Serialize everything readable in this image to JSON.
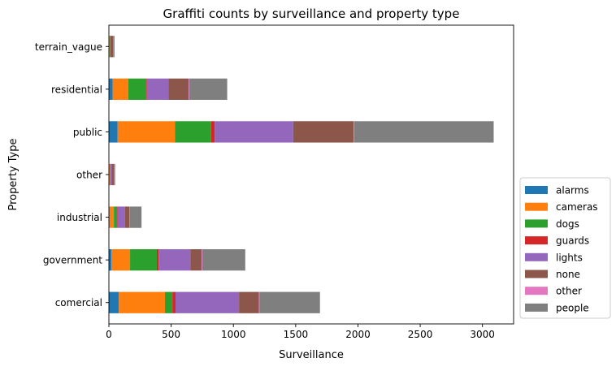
{
  "chart_data": {
    "type": "bar",
    "orientation": "horizontal",
    "stacked": true,
    "title": "Graffiti counts by surveillance and property type",
    "xlabel": "Surveillance",
    "ylabel": "Property Type",
    "xlim": [
      0,
      3250
    ],
    "xticks": [
      0,
      500,
      1000,
      1500,
      2000,
      2500,
      3000
    ],
    "grid": false,
    "legend_position": "outside-lower-right",
    "categories": [
      "comercial",
      "government",
      "industrial",
      "other",
      "public",
      "residential",
      "terrain_vague"
    ],
    "series": [
      {
        "name": "alarms",
        "color": "#1f77b4",
        "values": [
          80,
          20,
          5,
          3,
          70,
          30,
          2
        ]
      },
      {
        "name": "cameras",
        "color": "#ff7f0e",
        "values": [
          370,
          150,
          35,
          5,
          460,
          125,
          3
        ]
      },
      {
        "name": "dogs",
        "color": "#2ca02c",
        "values": [
          60,
          215,
          25,
          2,
          290,
          145,
          2
        ]
      },
      {
        "name": "guards",
        "color": "#d62728",
        "values": [
          25,
          15,
          5,
          2,
          30,
          5,
          1
        ]
      },
      {
        "name": "lights",
        "color": "#9467bd",
        "values": [
          510,
          255,
          60,
          10,
          630,
          175,
          5
        ]
      },
      {
        "name": "none",
        "color": "#8c564b",
        "values": [
          160,
          90,
          35,
          20,
          485,
          160,
          20
        ]
      },
      {
        "name": "other",
        "color": "#e377c2",
        "values": [
          5,
          5,
          2,
          2,
          5,
          5,
          1
        ]
      },
      {
        "name": "people",
        "color": "#7f7f7f",
        "values": [
          485,
          345,
          95,
          6,
          1120,
          305,
          11
        ]
      }
    ]
  }
}
